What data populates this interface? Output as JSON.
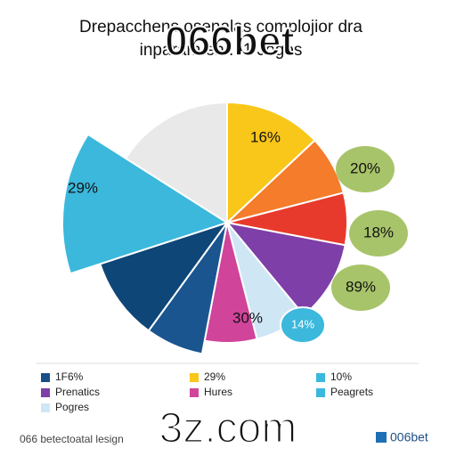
{
  "chart_data": {
    "type": "pie",
    "title": "Drepacchens osenalas complojior dra",
    "subtitle": "inparam en... 1 Jogos",
    "values": [
      13,
      8,
      7,
      11,
      7,
      7,
      7,
      10,
      14,
      16
    ],
    "colors": [
      "#f9c61a",
      "#f47c2a",
      "#e83a2c",
      "#7e3fa8",
      "#cfe6f5",
      "#d0449a",
      "#1a5590",
      "#0e4677",
      "#3bb8dc",
      "#e9e9ea"
    ],
    "annotations": [
      "16%",
      "29%",
      "30%",
      "20%",
      "18%",
      "89%",
      "14%"
    ],
    "annotation_color": "#a8c46a",
    "legend": [
      {
        "label": "1F6%",
        "color": "#174f86"
      },
      {
        "label": "29%",
        "color": "#f9c61a"
      },
      {
        "label": "10%",
        "color": "#3bb8dc"
      },
      {
        "label": "Prenatics",
        "color": "#7e3fa8"
      },
      {
        "label": "Hures",
        "color": "#d0449a"
      },
      {
        "label": "Peagrets",
        "color": "#3bb8dc"
      },
      {
        "label": "Pogres",
        "color": "#cfe6f5"
      }
    ]
  },
  "watermark": "066bet",
  "footer": {
    "site": "3z.com",
    "note": "066 betectoatal lesign",
    "brand": "006bet"
  }
}
